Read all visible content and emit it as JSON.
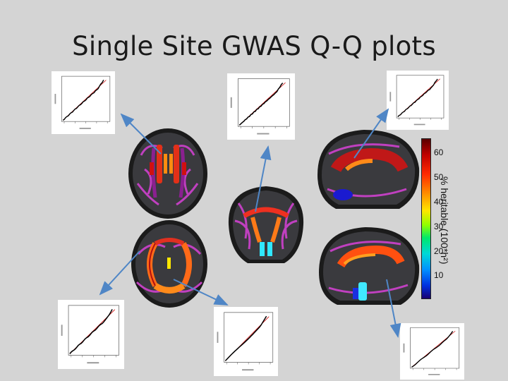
{
  "slide": {
    "title": "Single Site GWAS Q-Q plots"
  },
  "colorbar": {
    "label": "% heritable (100*h²)",
    "ticks": [
      "60",
      "50",
      "40",
      "30",
      "20",
      "10"
    ]
  },
  "colors": {
    "background": "#d4d4d4",
    "arrow": "#4f86c6"
  }
}
